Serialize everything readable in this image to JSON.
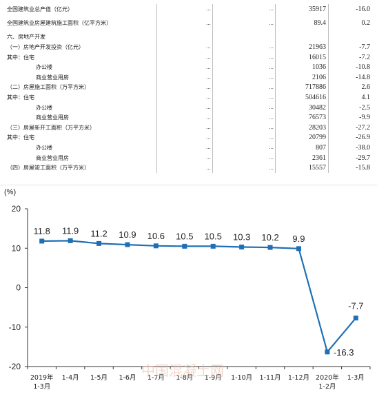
{
  "table": {
    "rows": [
      {
        "label": "全国建筑业总产值（亿元）",
        "a": "…",
        "b": "…",
        "value": "35917",
        "pct": "-16.0",
        "style": "ind1",
        "tall": false
      },
      {
        "label": "全国建筑业房屋建筑施工面积（亿平方米）",
        "a": "…",
        "b": "…",
        "value": "89.4",
        "pct": "0.2",
        "style": "ind1",
        "tall": true
      },
      {
        "label": "六、房地产开发",
        "a": "",
        "b": "",
        "value": "",
        "pct": "",
        "style": "ind1",
        "tall": false
      },
      {
        "label": "（一）房地产开发投资（亿元）",
        "a": "…",
        "b": "…",
        "value": "21963",
        "pct": "-7.7",
        "style": "ind1",
        "tall": false
      },
      {
        "label": "其中：住宅",
        "a": "…",
        "b": "…",
        "value": "16015",
        "pct": "-7.2",
        "style": "ind1",
        "tall": false
      },
      {
        "label": "办公楼",
        "a": "…",
        "b": "…",
        "value": "1036",
        "pct": "-10.8",
        "style": "ind2",
        "tall": false
      },
      {
        "label": "商业营业用房",
        "a": "…",
        "b": "…",
        "value": "2106",
        "pct": "-14.8",
        "style": "ind2",
        "tall": false
      },
      {
        "label": "（二）房屋施工面积（万平方米）",
        "a": "…",
        "b": "…",
        "value": "717886",
        "pct": "2.6",
        "style": "ind1",
        "tall": false
      },
      {
        "label": "其中：住宅",
        "a": "…",
        "b": "…",
        "value": "504616",
        "pct": "4.1",
        "style": "ind1",
        "tall": false
      },
      {
        "label": "办公楼",
        "a": "…",
        "b": "…",
        "value": "30482",
        "pct": "-2.5",
        "style": "ind2",
        "tall": false
      },
      {
        "label": "商业营业用房",
        "a": "…",
        "b": "…",
        "value": "76573",
        "pct": "-9.9",
        "style": "ind2",
        "tall": false
      },
      {
        "label": "（三）房屋新开工面积（万平方米）",
        "a": "…",
        "b": "…",
        "value": "28203",
        "pct": "-27.2",
        "style": "ind1",
        "tall": false
      },
      {
        "label": "其中：住宅",
        "a": "…",
        "b": "…",
        "value": "20799",
        "pct": "-26.9",
        "style": "ind1",
        "tall": false
      },
      {
        "label": "办公楼",
        "a": "…",
        "b": "…",
        "value": "807",
        "pct": "-38.0",
        "style": "ind2",
        "tall": false
      },
      {
        "label": "商业营业用房",
        "a": "…",
        "b": "…",
        "value": "2361",
        "pct": "-29.7",
        "style": "ind2",
        "tall": false
      },
      {
        "label": "（四）房屋竣工面积（万平方米）",
        "a": "…",
        "b": "…",
        "value": "15557",
        "pct": "-15.8",
        "style": "ind1",
        "tall": false
      }
    ]
  },
  "chart_data": {
    "type": "line",
    "unit_label": "(%)",
    "categories": [
      [
        "2019年",
        "1-3月"
      ],
      [
        "1-4月"
      ],
      [
        "1-5月"
      ],
      [
        "1-6月"
      ],
      [
        "1-7月"
      ],
      [
        "1-8月"
      ],
      [
        "1-9月"
      ],
      [
        "1-10月"
      ],
      [
        "1-11月"
      ],
      [
        "1-12月"
      ],
      [
        "2020年",
        "1-2月"
      ],
      [
        "1-3月"
      ]
    ],
    "values": [
      11.8,
      11.9,
      11.2,
      10.9,
      10.6,
      10.5,
      10.5,
      10.3,
      10.2,
      9.9,
      -16.3,
      -7.7
    ],
    "data_labels": [
      "11.8",
      "11.9",
      "11.2",
      "10.9",
      "10.6",
      "10.5",
      "10.5",
      "10.3",
      "10.2",
      "9.9",
      "-16.3",
      "-7.7"
    ],
    "yticks": [
      "20",
      "10",
      "0",
      "-10",
      "-20"
    ],
    "ytick_values": [
      20,
      10,
      0,
      -10,
      -20
    ],
    "ylim": [
      -20,
      20
    ],
    "grid": false,
    "line_color": "#1f6fb5",
    "watermark": "中国混凝土网"
  }
}
